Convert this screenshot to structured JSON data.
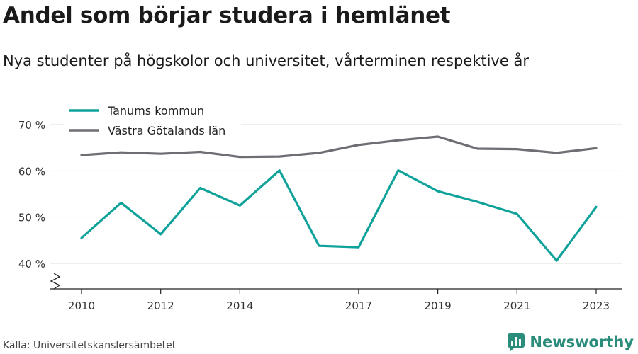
{
  "title": "Andel som börjar studera i hemlänet",
  "subtitle": "Nya studenter på högskolor och universitet, vårterminen respektive år",
  "source": "Källa: Universitetskanslersämbetet",
  "brand": {
    "name": "Newsworthy"
  },
  "colors": {
    "teal": "#0ea29a",
    "gray": "#6e6e74",
    "grid": "#dddddd",
    "axis": "#222222",
    "brand": "#2a8c7a"
  },
  "chart_data": {
    "type": "line",
    "x": [
      2010,
      2011,
      2012,
      2013,
      2014,
      2015,
      2016,
      2017,
      2018,
      2019,
      2020,
      2021,
      2022,
      2023
    ],
    "x_ticks": [
      2010,
      2012,
      2014,
      2017,
      2019,
      2021,
      2023
    ],
    "y_ticks": [
      40,
      50,
      60,
      70
    ],
    "y_tick_labels": [
      "40 %",
      "50 %",
      "60 %",
      "70 %"
    ],
    "ylim": [
      35,
      70
    ],
    "axis_break": true,
    "grid": true,
    "legend_position": "top-left",
    "series": [
      {
        "name": "Tanums kommun",
        "color": "#0ea29a",
        "values": [
          45.5,
          53.1,
          46.3,
          56.3,
          52.5,
          60.1,
          43.8,
          43.5,
          60.1,
          55.6,
          53.3,
          50.7,
          40.6,
          52.2
        ]
      },
      {
        "name": "Västra Götalands län",
        "color": "#6e6e74",
        "values": [
          63.4,
          64.0,
          63.7,
          64.1,
          63.0,
          63.1,
          63.9,
          65.6,
          66.6,
          67.4,
          64.8,
          64.7,
          63.9,
          64.9
        ]
      }
    ]
  }
}
